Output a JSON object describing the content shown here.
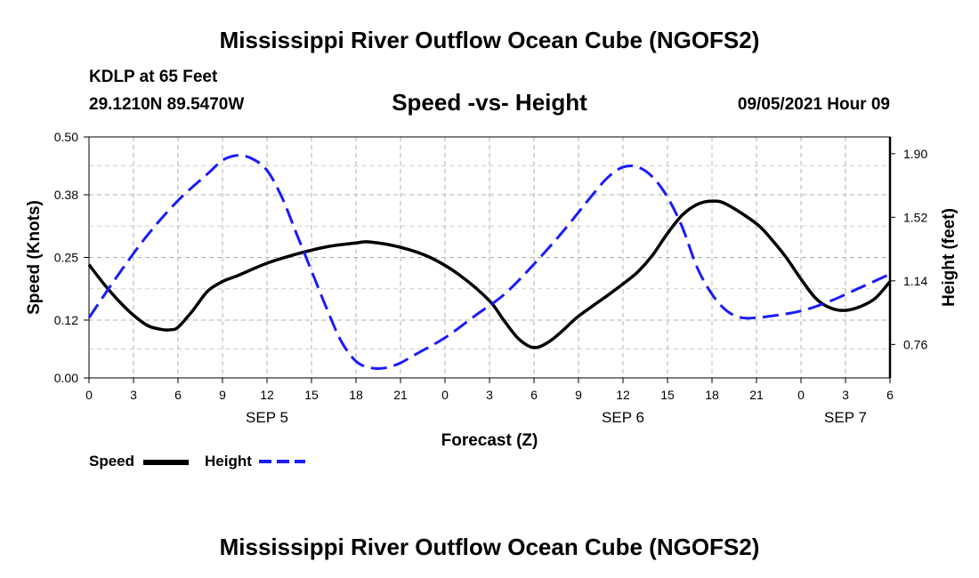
{
  "header": {
    "title": "Mississippi River Outflow Ocean Cube (NGOFS2)",
    "station": "KDLP at 65 Feet",
    "coords": "29.1210N  89.5470W",
    "subtitle": "Speed -vs- Height",
    "datetime": "09/05/2021 Hour 09"
  },
  "footer": {
    "title": "Mississippi River Outflow Ocean Cube (NGOFS2)"
  },
  "legend": {
    "speed_label": "Speed",
    "height_label": "Height"
  },
  "chart_data": {
    "type": "line",
    "xlabel": "Forecast (Z)",
    "ylabel": "Speed (Knots)",
    "y2label": "Height (feet)",
    "xlim": [
      0,
      54
    ],
    "ylim": [
      0,
      0.5
    ],
    "y2lim": [
      0.56,
      2.0
    ],
    "x_ticks": [
      0,
      3,
      6,
      9,
      12,
      15,
      18,
      21,
      24,
      27,
      30,
      33,
      36,
      39,
      42,
      45,
      48,
      51,
      54
    ],
    "x_tick_labels": [
      "0",
      "3",
      "6",
      "9",
      "12",
      "15",
      "18",
      "21",
      "0",
      "3",
      "6",
      "9",
      "12",
      "15",
      "18",
      "21",
      "0",
      "3",
      "6"
    ],
    "day_labels": [
      {
        "x": 12,
        "label": "SEP 5"
      },
      {
        "x": 36,
        "label": "SEP 6"
      },
      {
        "x": 51,
        "label": "SEP 7"
      }
    ],
    "y_ticks": [
      0.0,
      0.12,
      0.25,
      0.38,
      0.5
    ],
    "y_tick_labels": [
      "0.00",
      "0.12",
      "0.25",
      "0.38",
      "0.50"
    ],
    "y2_ticks": [
      0.76,
      1.14,
      1.52,
      1.9
    ],
    "y2_tick_labels": [
      "0.76",
      "1.14",
      "1.52",
      "1.90"
    ],
    "grid": true,
    "series": [
      {
        "name": "Speed",
        "axis": "left",
        "color": "#000000",
        "dash": "solid",
        "x": [
          0,
          1,
          2,
          3,
          4,
          5,
          5.5,
          6,
          7,
          8,
          9,
          10,
          12,
          14,
          16,
          18,
          19,
          21,
          23,
          25,
          27,
          28,
          29,
          30,
          31,
          32,
          33,
          35,
          36,
          37,
          38,
          39,
          40,
          41,
          42,
          43,
          45,
          46,
          47,
          48,
          49,
          50,
          51,
          52,
          53,
          54
        ],
        "values": [
          0.235,
          0.195,
          0.16,
          0.13,
          0.108,
          0.1,
          0.1,
          0.105,
          0.14,
          0.18,
          0.2,
          0.212,
          0.238,
          0.257,
          0.272,
          0.28,
          0.282,
          0.271,
          0.25,
          0.213,
          0.16,
          0.118,
          0.08,
          0.063,
          0.075,
          0.1,
          0.128,
          0.172,
          0.195,
          0.22,
          0.255,
          0.3,
          0.338,
          0.36,
          0.367,
          0.36,
          0.32,
          0.288,
          0.25,
          0.205,
          0.165,
          0.145,
          0.14,
          0.148,
          0.165,
          0.2
        ]
      },
      {
        "name": "Height",
        "axis": "right",
        "color": "#1a1aff",
        "dash": "dashed",
        "x": [
          0,
          2,
          4,
          6,
          8,
          9,
          10,
          11,
          12,
          13,
          14,
          15,
          16,
          17,
          18,
          19,
          20,
          21,
          22,
          24,
          26,
          28,
          30,
          32,
          34,
          35,
          36,
          37,
          38,
          39,
          40,
          41,
          42,
          43,
          44,
          45,
          46,
          48,
          50,
          52,
          54
        ],
        "values": [
          0.92,
          1.18,
          1.42,
          1.62,
          1.78,
          1.86,
          1.89,
          1.87,
          1.8,
          1.64,
          1.42,
          1.2,
          0.98,
          0.78,
          0.66,
          0.62,
          0.62,
          0.65,
          0.7,
          0.8,
          0.93,
          1.06,
          1.24,
          1.44,
          1.66,
          1.76,
          1.82,
          1.82,
          1.76,
          1.64,
          1.46,
          1.22,
          1.06,
          0.96,
          0.92,
          0.92,
          0.93,
          0.96,
          1.02,
          1.1,
          1.18
        ]
      }
    ]
  }
}
